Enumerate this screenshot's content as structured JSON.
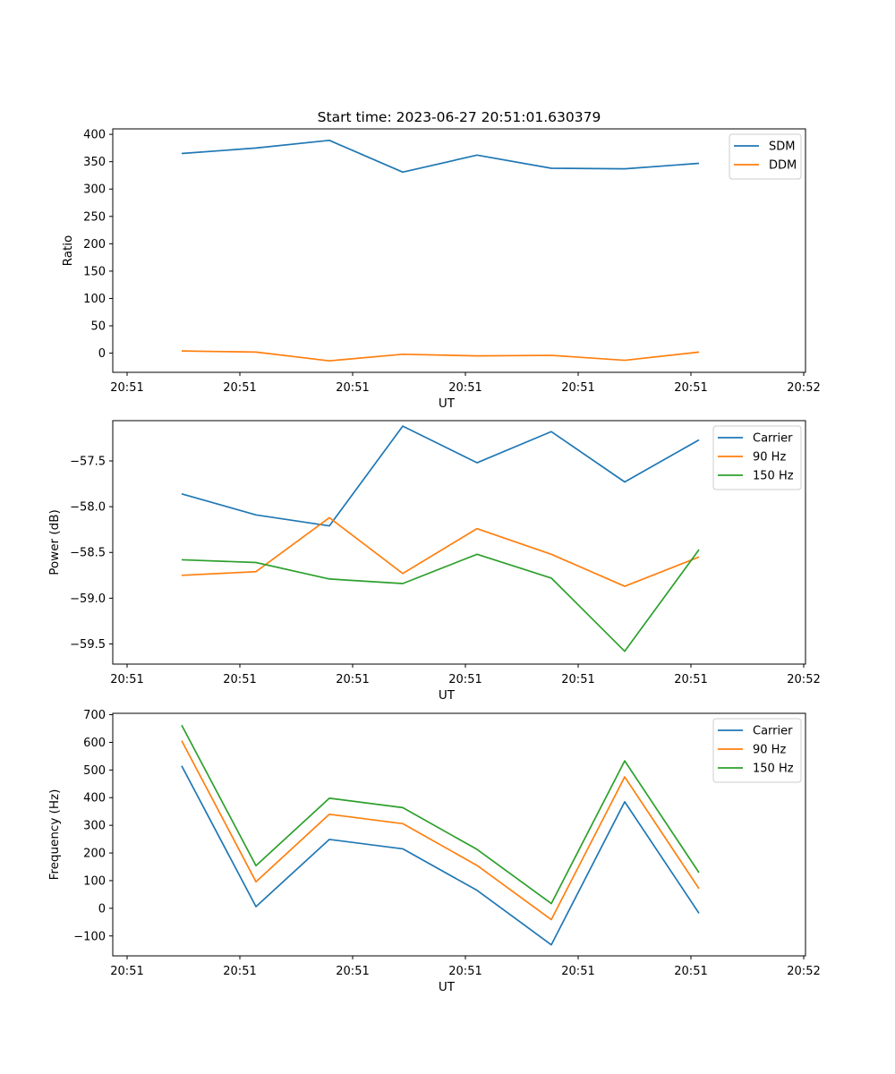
{
  "figure": {
    "title": "Start time: 2023-06-27 20:51:01.630379"
  },
  "chart_data": [
    {
      "type": "line",
      "title": "Start time: 2023-06-27 20:51:01.630379",
      "xlabel": "UT",
      "ylabel": "Ratio",
      "x_tick_labels": [
        "20:51",
        "20:51",
        "20:51",
        "20:51",
        "20:51",
        "20:51",
        "20:52"
      ],
      "y_ticks": [
        0,
        50,
        100,
        150,
        200,
        250,
        300,
        350,
        400
      ],
      "ylim": [
        -35,
        410
      ],
      "legend_position": "top-right",
      "grid": false,
      "x_points": 8,
      "series": [
        {
          "name": "SDM",
          "color": "#1f77b4",
          "values": [
            365,
            375,
            389,
            331,
            362,
            338,
            337,
            347
          ]
        },
        {
          "name": "DDM",
          "color": "#ff7f0e",
          "values": [
            4,
            2,
            -14,
            -2,
            -5,
            -4,
            -13,
            2
          ]
        }
      ]
    },
    {
      "type": "line",
      "xlabel": "UT",
      "ylabel": "Power (dB)",
      "x_tick_labels": [
        "20:51",
        "20:51",
        "20:51",
        "20:51",
        "20:51",
        "20:51",
        "20:52"
      ],
      "y_ticks": [
        -59.5,
        -59.0,
        -58.5,
        -58.0,
        -57.5
      ],
      "y_tick_labels": [
        "−59.5",
        "−59.0",
        "−58.5",
        "−58.0",
        "−57.5"
      ],
      "ylim": [
        -59.72,
        -57.06
      ],
      "legend_position": "top-right",
      "grid": false,
      "x_points": 8,
      "series": [
        {
          "name": "Carrier",
          "color": "#1f77b4",
          "values": [
            -57.86,
            -58.09,
            -58.21,
            -57.12,
            -57.52,
            -57.18,
            -57.73,
            -57.27
          ]
        },
        {
          "name": "90 Hz",
          "color": "#ff7f0e",
          "values": [
            -58.75,
            -58.71,
            -58.12,
            -58.73,
            -58.24,
            -58.52,
            -58.87,
            -58.55
          ]
        },
        {
          "name": "150 Hz",
          "color": "#2ca02c",
          "values": [
            -58.58,
            -58.61,
            -58.79,
            -58.84,
            -58.52,
            -58.78,
            -59.58,
            -58.47
          ]
        }
      ]
    },
    {
      "type": "line",
      "xlabel": "UT",
      "ylabel": "Frequency (Hz)",
      "x_tick_labels": [
        "20:51",
        "20:51",
        "20:51",
        "20:51",
        "20:51",
        "20:51",
        "20:52"
      ],
      "y_ticks": [
        -100,
        0,
        100,
        200,
        300,
        400,
        500,
        600,
        700
      ],
      "y_tick_labels": [
        "−100",
        "0",
        "100",
        "200",
        "300",
        "400",
        "500",
        "600",
        "700"
      ],
      "ylim": [
        -172,
        705
      ],
      "legend_position": "top-right",
      "grid": false,
      "x_points": 8,
      "series": [
        {
          "name": "Carrier",
          "color": "#1f77b4",
          "values": [
            515,
            6,
            249,
            215,
            65,
            -132,
            385,
            -18
          ]
        },
        {
          "name": "90 Hz",
          "color": "#ff7f0e",
          "values": [
            606,
            96,
            340,
            306,
            155,
            -41,
            475,
            71
          ]
        },
        {
          "name": "150 Hz",
          "color": "#2ca02c",
          "values": [
            662,
            154,
            398,
            364,
            213,
            17,
            533,
            129
          ]
        }
      ]
    }
  ]
}
